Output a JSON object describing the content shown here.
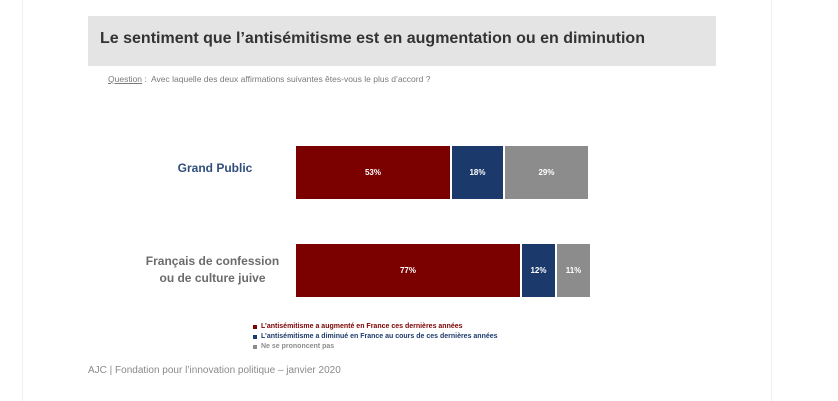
{
  "header": {
    "title": "Le sentiment que l’antisémitisme est en augmentation ou en diminution"
  },
  "question": {
    "label": "Question",
    "separator": " :  ",
    "text": "Avec laquelle des deux affirmations suivantes êtes-vous le plus d’accord ?"
  },
  "colors": {
    "augmente": "#7b0000",
    "diminue": "#1b3a6b",
    "nsp": "#8c8c8c"
  },
  "chart_data": {
    "type": "bar",
    "orientation": "horizontal",
    "stacked": true,
    "categories": [
      "Grand Public",
      "Français de confession ou de culture juive"
    ],
    "category_lines": [
      [
        "Grand Public"
      ],
      [
        "Français de confession",
        "ou de culture juive"
      ]
    ],
    "series": [
      {
        "name": "L’antisémitisme a augmenté en France ces dernières années",
        "values": [
          53,
          77
        ],
        "labels": [
          "53%",
          "77%"
        ],
        "color": "#7b0000"
      },
      {
        "name": "L’antisémitisme a diminué en France au cours de ces dernières années",
        "values": [
          18,
          12
        ],
        "labels": [
          "18%",
          "12%"
        ],
        "color": "#1b3a6b"
      },
      {
        "name": "Ne se prononcent pas",
        "values": [
          29,
          11
        ],
        "labels": [
          "29%",
          "11%"
        ],
        "color": "#8c8c8c"
      }
    ],
    "unit": "%",
    "xlim": [
      0,
      100
    ],
    "legend_position": "bottom"
  },
  "footer": {
    "text": "AJC | Fondation pour l’innovation politique – janvier 2020"
  }
}
